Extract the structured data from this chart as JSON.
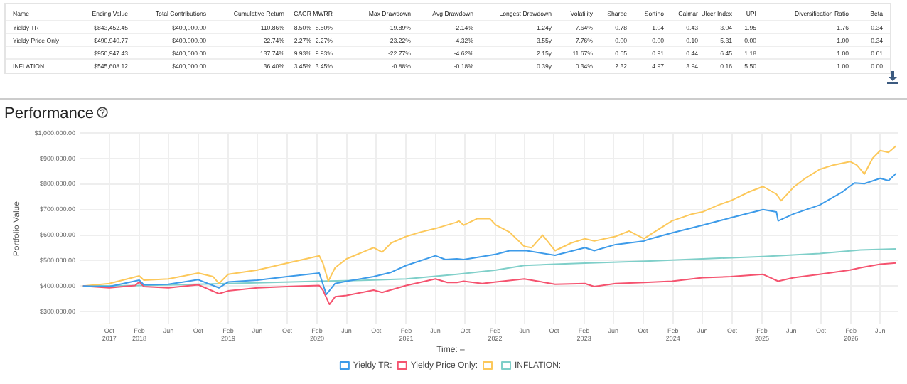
{
  "chart_data": [
    {
      "type": "other",
      "categories": [
        "Name",
        "Ending Value",
        "Total Contributions",
        "Cumulative Return",
        "CAGR",
        "MWRR",
        "Max Drawdown",
        "Avg Drawdown",
        "Longest Drawdown",
        "Volatility",
        "Sharpe",
        "Sortino",
        "Calmar",
        "Ulcer Index",
        "UPI",
        "Diversification Ratio",
        "Beta"
      ],
      "y_categories": [
        "Yieldy TR",
        "Yieldy Price Only",
        null,
        "INFLATION"
      ],
      "cell_labels": [
        [
          "$843,452.45",
          "$400,000.00",
          "110.86%",
          "8.50%",
          "8.50%",
          "-19.89%",
          "-2.14%",
          "1.24y",
          "7.64%",
          "0.78",
          "1.04",
          "0.43",
          "3.04",
          "1.95",
          "1.76",
          "0.34"
        ],
        [
          "$490,940.77",
          "$400,000.00",
          "22.74%",
          "2.27%",
          "2.27%",
          "-23.22%",
          "-4.32%",
          "3.55y",
          "7.76%",
          "0.00",
          "0.00",
          "0.10",
          "5.31",
          "0.00",
          "1.00",
          "0.34"
        ],
        [
          "$950,947.43",
          "$400,000.00",
          "137.74%",
          "9.93%",
          "9.93%",
          "-22.77%",
          "-4.62%",
          "2.15y",
          "11.67%",
          "0.65",
          "0.91",
          "0.44",
          "6.45",
          "1.18",
          "1.00",
          "0.61"
        ],
        [
          "$545,608.12",
          "$400,000.00",
          "36.40%",
          "3.45%",
          "3.45%",
          "-0.88%",
          "-0.18%",
          "0.39y",
          "0.34%",
          "2.32",
          "4.97",
          "3.94",
          "0.16",
          "5.50",
          "1.00",
          "0.00"
        ]
      ]
    },
    {
      "type": "line",
      "title": "Performance",
      "ylabel": "Portfolio Value",
      "legend_title": "Time: –",
      "legend": "bottom",
      "grid": true,
      "xlim": [
        "2017-06-01",
        "2026-08-15"
      ],
      "ylim": [
        250000,
        1000000
      ],
      "xticks": [
        {
          "value": "2017-10",
          "label": "Oct\n2017"
        },
        {
          "value": "2018-02",
          "label": "Feb\n2018"
        },
        {
          "value": "2018-06",
          "label": "Jun"
        },
        {
          "value": "2018-10",
          "label": "Oct"
        },
        {
          "value": "2019-02",
          "label": "Feb\n2019"
        },
        {
          "value": "2019-06",
          "label": "Jun"
        },
        {
          "value": "2019-10",
          "label": "Oct"
        },
        {
          "value": "2020-02",
          "label": "Feb\n2020"
        },
        {
          "value": "2020-06",
          "label": "Jun"
        },
        {
          "value": "2020-10",
          "label": "Oct"
        },
        {
          "value": "2021-02",
          "label": "Feb\n2021"
        },
        {
          "value": "2021-06",
          "label": "Jun"
        },
        {
          "value": "2021-10",
          "label": "Oct"
        },
        {
          "value": "2022-02",
          "label": "Feb\n2022"
        },
        {
          "value": "2022-06",
          "label": "Jun"
        },
        {
          "value": "2022-10",
          "label": "Oct"
        },
        {
          "value": "2023-02",
          "label": "Feb\n2023"
        },
        {
          "value": "2023-06",
          "label": "Jun"
        },
        {
          "value": "2023-10",
          "label": "Oct"
        },
        {
          "value": "2024-02",
          "label": "Feb\n2024"
        },
        {
          "value": "2024-06",
          "label": "Jun"
        },
        {
          "value": "2024-10",
          "label": "Oct"
        },
        {
          "value": "2025-02",
          "label": "Feb\n2025"
        },
        {
          "value": "2025-06",
          "label": "Jun"
        },
        {
          "value": "2025-10",
          "label": "Oct"
        },
        {
          "value": "2026-02",
          "label": "Feb\n2026"
        },
        {
          "value": "2026-06",
          "label": "Jun"
        }
      ],
      "yticks": [
        {
          "value": 300000,
          "label": "$300,000.00"
        },
        {
          "value": 400000,
          "label": "$400,000.00"
        },
        {
          "value": 500000,
          "label": "$500,000.00"
        },
        {
          "value": 600000,
          "label": "$600,000.00"
        },
        {
          "value": 700000,
          "label": "$700,000.00"
        },
        {
          "value": 800000,
          "label": "$800,000.00"
        },
        {
          "value": 900000,
          "label": "$900,000.00"
        },
        {
          "value": 1000000,
          "label": "$1,000,000.00"
        }
      ],
      "series": [
        {
          "name": "Yieldy TR:",
          "color": "#3d9be9",
          "x": [
            "2017-06-15",
            "2017-10-01",
            "2018-02-01",
            "2018-02-20",
            "2018-06-01",
            "2018-10-01",
            "2018-12-25",
            "2019-02-01",
            "2019-06-01",
            "2019-10-01",
            "2020-02-10",
            "2020-03-10",
            "2020-04-15",
            "2020-06-01",
            "2020-09-20",
            "2020-12-01",
            "2021-02-01",
            "2021-06-01",
            "2021-07-12",
            "2021-08-28",
            "2021-09-25",
            "2021-12-10",
            "2022-02-05",
            "2022-04-01",
            "2022-06-10",
            "2022-10-05",
            "2023-02-05",
            "2023-03-15",
            "2023-06-10",
            "2023-10-05",
            "2023-11-01",
            "2024-01-28",
            "2024-06-01",
            "2024-09-25",
            "2025-02-05",
            "2025-04-01",
            "2025-04-08",
            "2025-06-10",
            "2025-09-25",
            "2025-12-28",
            "2026-02-15",
            "2026-03-28",
            "2026-06-01",
            "2026-07-05",
            "2026-08-06"
          ],
          "values": [
            400000,
            398000,
            423000,
            405000,
            407000,
            425000,
            393000,
            416000,
            423000,
            437000,
            451000,
            367000,
            410000,
            419000,
            437000,
            454000,
            481000,
            519000,
            504000,
            507000,
            504000,
            516000,
            525000,
            539000,
            539000,
            521000,
            551000,
            539000,
            563000,
            577000,
            586000,
            609000,
            639000,
            668000,
            700000,
            691000,
            656000,
            683000,
            718000,
            770000,
            805000,
            802000,
            823000,
            814000,
            843000
          ]
        },
        {
          "name": "Yieldy Price Only:",
          "color": "#f5536f",
          "x": [
            "2017-06-15",
            "2017-10-01",
            "2018-01-15",
            "2018-02-01",
            "2018-02-20",
            "2018-06-01",
            "2018-10-01",
            "2018-12-25",
            "2019-02-01",
            "2019-06-01",
            "2019-10-01",
            "2020-02-10",
            "2020-02-25",
            "2020-03-23",
            "2020-04-15",
            "2020-06-01",
            "2020-09-20",
            "2020-10-25",
            "2021-02-01",
            "2021-06-01",
            "2021-07-20",
            "2021-08-28",
            "2021-09-25",
            "2021-12-10",
            "2022-02-05",
            "2022-06-01",
            "2022-10-05",
            "2023-02-05",
            "2023-03-15",
            "2023-06-10",
            "2023-10-05",
            "2024-01-28",
            "2024-06-01",
            "2024-09-25",
            "2025-02-05",
            "2025-04-08",
            "2025-06-10",
            "2025-09-25",
            "2026-01-28",
            "2026-03-12",
            "2026-06-01",
            "2026-08-06"
          ],
          "values": [
            400000,
            393000,
            402000,
            416000,
            398000,
            393000,
            405000,
            370000,
            381000,
            393000,
            398000,
            402000,
            384000,
            328000,
            358000,
            363000,
            384000,
            375000,
            402000,
            428000,
            414000,
            414000,
            419000,
            410000,
            416000,
            428000,
            407000,
            410000,
            398000,
            410000,
            414000,
            419000,
            433000,
            437000,
            446000,
            419000,
            433000,
            446000,
            463000,
            472000,
            486000,
            491000
          ]
        },
        {
          "color": "#fcc85a",
          "x": [
            "2017-06-15",
            "2017-10-01",
            "2018-02-01",
            "2018-02-20",
            "2018-06-01",
            "2018-10-01",
            "2018-12-01",
            "2018-12-25",
            "2019-02-01",
            "2019-06-01",
            "2019-10-01",
            "2020-02-10",
            "2020-02-25",
            "2020-03-18",
            "2020-04-15",
            "2020-06-01",
            "2020-09-20",
            "2020-10-25",
            "2020-12-01",
            "2021-02-01",
            "2021-04-01",
            "2021-06-01",
            "2021-08-28",
            "2021-09-05",
            "2021-09-25",
            "2021-11-20",
            "2022-01-10",
            "2022-02-05",
            "2022-04-01",
            "2022-06-01",
            "2022-07-01",
            "2022-08-15",
            "2022-10-05",
            "2022-12-10",
            "2023-02-05",
            "2023-03-15",
            "2023-06-10",
            "2023-08-05",
            "2023-10-05",
            "2023-11-01",
            "2024-01-28",
            "2024-04-20",
            "2024-06-01",
            "2024-08-05",
            "2024-09-25",
            "2024-12-10",
            "2025-02-05",
            "2025-04-01",
            "2025-04-20",
            "2025-06-10",
            "2025-07-28",
            "2025-09-25",
            "2025-11-20",
            "2026-01-28",
            "2026-02-25",
            "2026-03-28",
            "2026-05-01",
            "2026-06-01",
            "2026-07-05",
            "2026-08-06"
          ],
          "values": [
            400000,
            410000,
            440000,
            423000,
            428000,
            451000,
            437000,
            410000,
            446000,
            463000,
            490000,
            519000,
            490000,
            419000,
            472000,
            507000,
            551000,
            533000,
            569000,
            595000,
            612000,
            626000,
            651000,
            656000,
            639000,
            665000,
            665000,
            639000,
            612000,
            556000,
            551000,
            600000,
            539000,
            569000,
            586000,
            577000,
            595000,
            616000,
            586000,
            603000,
            656000,
            683000,
            691000,
            718000,
            735000,
            770000,
            791000,
            761000,
            735000,
            788000,
            823000,
            858000,
            875000,
            889000,
            875000,
            840000,
            902000,
            932000,
            925000,
            951000
          ]
        },
        {
          "name": "INFLATION:",
          "color": "#7fcfc9",
          "x": [
            "2017-06-15",
            "2018-02-01",
            "2019-02-01",
            "2020-02-10",
            "2020-09-01",
            "2021-02-01",
            "2021-08-28",
            "2022-02-05",
            "2022-06-01",
            "2022-10-05",
            "2023-02-05",
            "2023-10-12",
            "2024-01-28",
            "2024-06-01",
            "2025-02-05",
            "2025-09-25",
            "2026-03-12",
            "2026-08-06"
          ],
          "values": [
            400000,
            402000,
            410000,
            419000,
            423000,
            428000,
            446000,
            463000,
            481000,
            486000,
            490000,
            498000,
            502000,
            507000,
            516000,
            528000,
            542000,
            546000
          ]
        }
      ]
    }
  ]
}
